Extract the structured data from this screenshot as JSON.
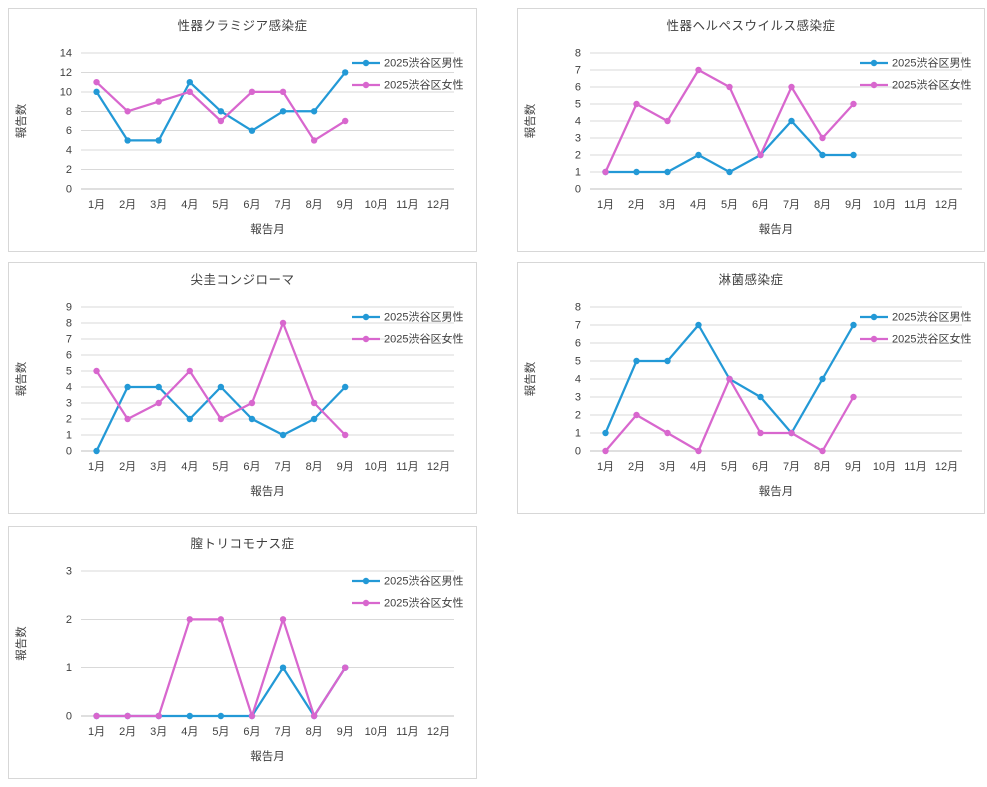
{
  "page": {
    "background": "#ffffff",
    "card_border": "#d7d7d7"
  },
  "colors": {
    "male_series": "#2399d6",
    "female_series": "#d867ce",
    "gridline": "#d9d9d9",
    "axis_line": "#bfbfbf",
    "text": "#404040"
  },
  "legend": {
    "male_label": "2025渋谷区男性",
    "female_label": "2025渋谷区女性",
    "position": "top-right"
  },
  "chart_data": [
    {
      "type": "line",
      "title": "性器クラミジア感染症",
      "xlabel": "報告月",
      "ylabel": "報告数",
      "ylim": [
        0,
        14
      ],
      "ytick_step": 2,
      "grid": "horizontal",
      "legend_position": "top-right",
      "categories": [
        "1月",
        "2月",
        "3月",
        "4月",
        "5月",
        "6月",
        "7月",
        "8月",
        "9月",
        "10月",
        "11月",
        "12月"
      ],
      "series": [
        {
          "name": "2025渋谷区男性",
          "color": "#2399d6",
          "values": [
            10,
            5,
            5,
            11,
            8,
            6,
            8,
            8,
            12,
            null,
            null,
            null
          ]
        },
        {
          "name": "2025渋谷区女性",
          "color": "#d867ce",
          "values": [
            11,
            8,
            9,
            10,
            7,
            10,
            10,
            5,
            7,
            null,
            null,
            null
          ]
        }
      ]
    },
    {
      "type": "line",
      "title": "性器ヘルペスウイルス感染症",
      "xlabel": "報告月",
      "ylabel": "報告数",
      "ylim": [
        0,
        8
      ],
      "ytick_step": 1,
      "grid": "horizontal",
      "legend_position": "top-right",
      "categories": [
        "1月",
        "2月",
        "3月",
        "4月",
        "5月",
        "6月",
        "7月",
        "8月",
        "9月",
        "10月",
        "11月",
        "12月"
      ],
      "series": [
        {
          "name": "2025渋谷区男性",
          "color": "#2399d6",
          "values": [
            1,
            1,
            1,
            2,
            1,
            2,
            4,
            2,
            2,
            null,
            null,
            null
          ]
        },
        {
          "name": "2025渋谷区女性",
          "color": "#d867ce",
          "values": [
            1,
            5,
            4,
            7,
            6,
            2,
            6,
            3,
            5,
            null,
            null,
            null
          ]
        }
      ]
    },
    {
      "type": "line",
      "title": "尖圭コンジローマ",
      "xlabel": "報告月",
      "ylabel": "報告数",
      "ylim": [
        0,
        9
      ],
      "ytick_step": 1,
      "grid": "horizontal",
      "legend_position": "top-right",
      "categories": [
        "1月",
        "2月",
        "3月",
        "4月",
        "5月",
        "6月",
        "7月",
        "8月",
        "9月",
        "10月",
        "11月",
        "12月"
      ],
      "series": [
        {
          "name": "2025渋谷区男性",
          "color": "#2399d6",
          "values": [
            0,
            4,
            4,
            2,
            4,
            2,
            1,
            2,
            4,
            null,
            null,
            null
          ]
        },
        {
          "name": "2025渋谷区女性",
          "color": "#d867ce",
          "values": [
            5,
            2,
            3,
            5,
            2,
            3,
            8,
            3,
            1,
            null,
            null,
            null
          ]
        }
      ]
    },
    {
      "type": "line",
      "title": "淋菌感染症",
      "xlabel": "報告月",
      "ylabel": "報告数",
      "ylim": [
        0,
        8
      ],
      "ytick_step": 1,
      "grid": "horizontal",
      "legend_position": "top-right",
      "categories": [
        "1月",
        "2月",
        "3月",
        "4月",
        "5月",
        "6月",
        "7月",
        "8月",
        "9月",
        "10月",
        "11月",
        "12月"
      ],
      "series": [
        {
          "name": "2025渋谷区男性",
          "color": "#2399d6",
          "values": [
            1,
            5,
            5,
            7,
            4,
            3,
            1,
            4,
            7,
            null,
            null,
            null
          ]
        },
        {
          "name": "2025渋谷区女性",
          "color": "#d867ce",
          "values": [
            0,
            2,
            1,
            0,
            4,
            1,
            1,
            0,
            3,
            null,
            null,
            null
          ]
        }
      ]
    },
    {
      "type": "line",
      "title": "膣トリコモナス症",
      "xlabel": "報告月",
      "ylabel": "報告数",
      "ylim": [
        0,
        3
      ],
      "ytick_step": 1,
      "grid": "horizontal",
      "legend_position": "top-right",
      "categories": [
        "1月",
        "2月",
        "3月",
        "4月",
        "5月",
        "6月",
        "7月",
        "8月",
        "9月",
        "10月",
        "11月",
        "12月"
      ],
      "series": [
        {
          "name": "2025渋谷区男性",
          "color": "#2399d6",
          "values": [
            0,
            0,
            0,
            0,
            0,
            0,
            1,
            0,
            1,
            null,
            null,
            null
          ]
        },
        {
          "name": "2025渋谷区女性",
          "color": "#d867ce",
          "values": [
            0,
            0,
            0,
            2,
            2,
            0,
            2,
            0,
            1,
            null,
            null,
            null
          ]
        }
      ]
    }
  ]
}
